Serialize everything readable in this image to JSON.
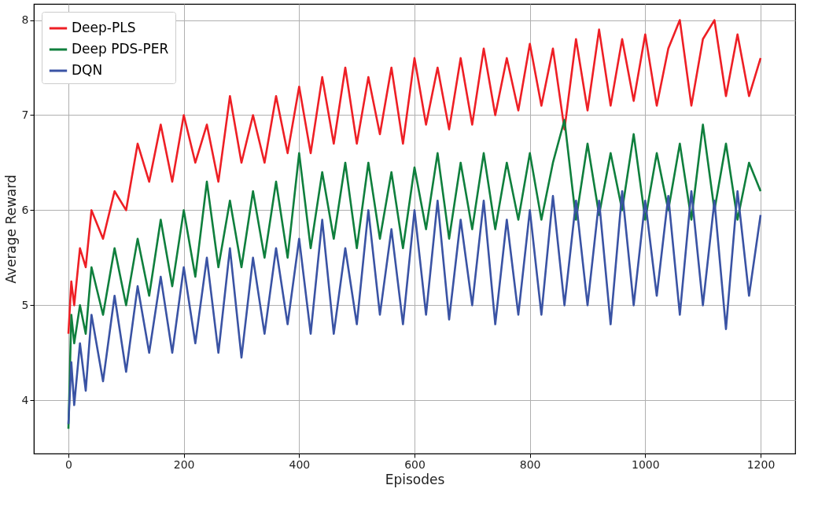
{
  "chart_data": {
    "type": "line",
    "xlabel": "Episodes",
    "ylabel": "Average Reward",
    "x": [
      0,
      5,
      10,
      20,
      30,
      40,
      60,
      80,
      100,
      120,
      140,
      160,
      180,
      200,
      220,
      240,
      260,
      280,
      300,
      320,
      340,
      360,
      380,
      400,
      420,
      440,
      460,
      480,
      500,
      520,
      540,
      560,
      580,
      600,
      620,
      640,
      660,
      680,
      700,
      720,
      740,
      760,
      780,
      800,
      820,
      840,
      860,
      880,
      900,
      920,
      940,
      960,
      980,
      1000,
      1020,
      1040,
      1060,
      1080,
      1100,
      1120,
      1140,
      1160,
      1180,
      1200
    ],
    "series": [
      {
        "name": "Deep-PLS",
        "color": "#ee1f25",
        "values": [
          4.7,
          5.25,
          5.0,
          5.6,
          5.4,
          6.0,
          5.7,
          6.2,
          6.0,
          6.7,
          6.3,
          6.9,
          6.3,
          7.0,
          6.5,
          6.9,
          6.3,
          7.2,
          6.5,
          7.0,
          6.5,
          7.2,
          6.6,
          7.3,
          6.6,
          7.4,
          6.7,
          7.5,
          6.7,
          7.4,
          6.8,
          7.5,
          6.7,
          7.6,
          6.9,
          7.5,
          6.85,
          7.6,
          6.9,
          7.7,
          7.0,
          7.6,
          7.05,
          7.75,
          7.1,
          7.7,
          6.85,
          7.8,
          7.05,
          7.9,
          7.1,
          7.8,
          7.15,
          7.85,
          7.1,
          7.7,
          8.0,
          7.1,
          7.8,
          8.0,
          7.2,
          7.85,
          7.2,
          7.6
        ]
      },
      {
        "name": "Deep PDS-PER",
        "color": "#0f7f3d",
        "values": [
          3.7,
          4.9,
          4.6,
          5.0,
          4.7,
          5.4,
          4.9,
          5.6,
          5.0,
          5.7,
          5.1,
          5.9,
          5.2,
          6.0,
          5.3,
          6.3,
          5.4,
          6.1,
          5.4,
          6.2,
          5.5,
          6.3,
          5.5,
          6.6,
          5.6,
          6.4,
          5.7,
          6.5,
          5.6,
          6.5,
          5.7,
          6.4,
          5.6,
          6.45,
          5.8,
          6.6,
          5.7,
          6.5,
          5.8,
          6.6,
          5.8,
          6.5,
          5.9,
          6.6,
          5.9,
          6.5,
          6.95,
          5.9,
          6.7,
          5.95,
          6.6,
          6.0,
          6.8,
          5.9,
          6.6,
          6.0,
          6.7,
          5.9,
          6.9,
          6.0,
          6.7,
          5.9,
          6.5,
          6.2
        ]
      },
      {
        "name": "DQN",
        "color": "#3a53a4",
        "values": [
          3.75,
          4.4,
          3.95,
          4.6,
          4.1,
          4.9,
          4.2,
          5.1,
          4.3,
          5.2,
          4.5,
          5.3,
          4.5,
          5.4,
          4.6,
          5.5,
          4.5,
          5.6,
          4.45,
          5.5,
          4.7,
          5.6,
          4.8,
          5.7,
          4.7,
          5.9,
          4.7,
          5.6,
          4.8,
          6.0,
          4.9,
          5.8,
          4.8,
          6.0,
          4.9,
          6.1,
          4.85,
          5.9,
          5.0,
          6.1,
          4.8,
          5.9,
          4.9,
          6.0,
          4.9,
          6.15,
          5.0,
          6.1,
          5.0,
          6.1,
          4.8,
          6.2,
          5.0,
          6.1,
          5.1,
          6.15,
          4.9,
          6.2,
          5.0,
          6.1,
          4.75,
          6.2,
          5.1,
          5.95
        ]
      }
    ],
    "xlim": [
      -60,
      1260
    ],
    "ylim": [
      3.44,
      8.17
    ],
    "xticks": [
      0,
      200,
      400,
      600,
      800,
      1000,
      1200
    ],
    "yticks": [
      4,
      5,
      6,
      7,
      8
    ],
    "grid": true,
    "legend": "top left",
    "marker": "none",
    "line_style": "solid"
  }
}
